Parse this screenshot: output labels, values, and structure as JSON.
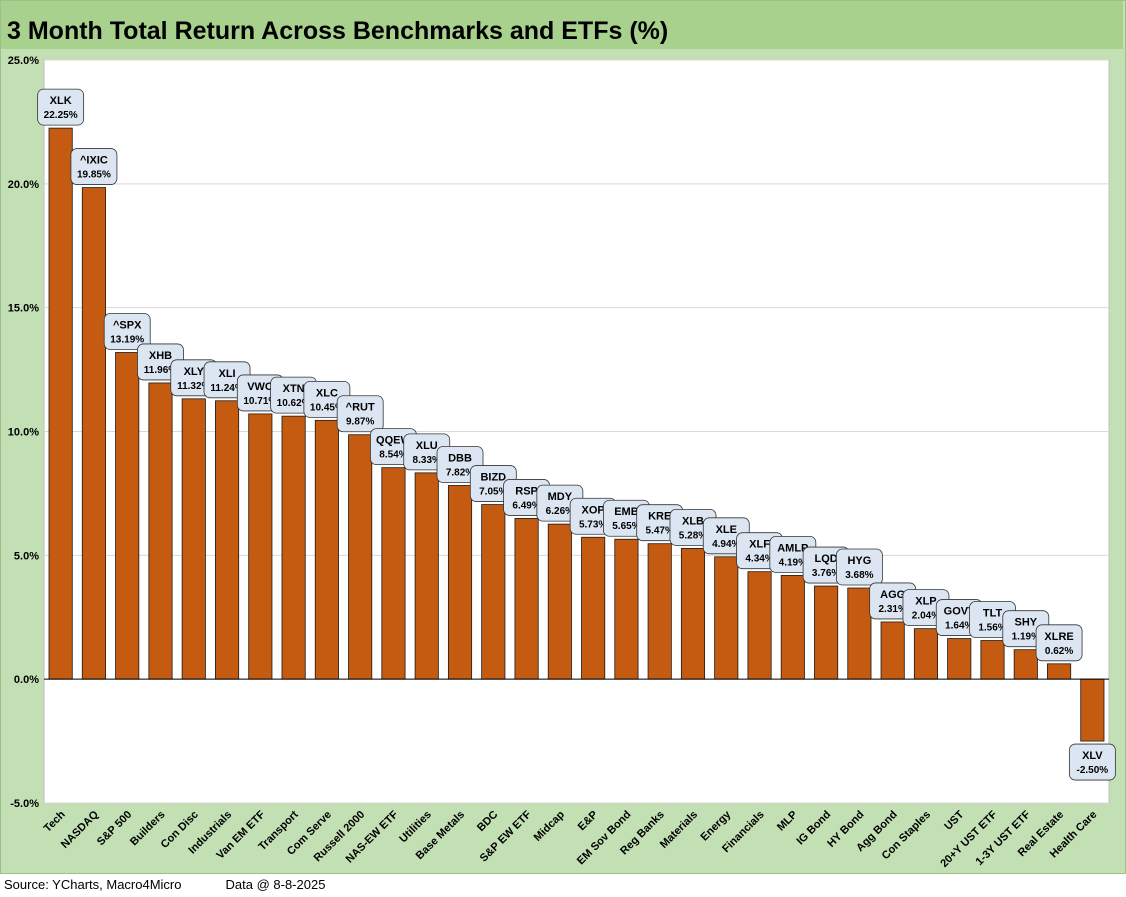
{
  "title": "3 Month Total Return Across Benchmarks and ETFs (%)",
  "footer": {
    "source": "Source: YCharts, Macro4Micro",
    "date": "Data @ 8-8-2025"
  },
  "colors": {
    "bar": "#c55a11",
    "bar_stroke": "#1a1a1a",
    "label_fill": "#dce6f2",
    "frame_bg": "#c3e0b4",
    "title_band": "#a9d18e",
    "grid": "#d9d9d9"
  },
  "chart_data": {
    "type": "bar",
    "title": "3 Month Total Return Across Benchmarks and ETFs (%)",
    "xlabel": "",
    "ylabel": "",
    "ylim": [
      -5,
      25
    ],
    "yticks": [
      "-5.0%",
      "0.0%",
      "5.0%",
      "10.0%",
      "15.0%",
      "20.0%",
      "25.0%"
    ],
    "grid": true,
    "categories": [
      "Tech",
      "NASDAQ",
      "S&P 500",
      "Builders",
      "Con Disc",
      "Industrials",
      "Van EM ETF",
      "Transport",
      "Com Serve",
      "Russell 2000",
      "NAS-EW ETF",
      "Utilities",
      "Base Metals",
      "BDC",
      "S&P EW ETF",
      "Midcap",
      "E&P",
      "EM Sov Bond",
      "Reg Banks",
      "Materials",
      "Energy",
      "Financials",
      "MLP",
      "IG Bond",
      "HY Bond",
      "Agg Bond",
      "Con Staples",
      "UST",
      "20+Y UST ETF",
      "1-3Y UST ETF",
      "Real Estate",
      "Health Care"
    ],
    "tickers": [
      "XLK",
      "^IXIC",
      "^SPX",
      "XHB",
      "XLY",
      "XLI",
      "VWO",
      "XTN",
      "XLC",
      "^RUT",
      "QQEW",
      "XLU",
      "DBB",
      "BIZD",
      "RSP",
      "MDY",
      "XOP",
      "EMB",
      "KRE",
      "XLB",
      "XLE",
      "XLF",
      "AMLP",
      "LQD",
      "HYG",
      "AGG",
      "XLP",
      "GOVT",
      "TLT",
      "SHY",
      "XLRE",
      "XLV"
    ],
    "values": [
      22.25,
      19.85,
      13.19,
      11.96,
      11.32,
      11.24,
      10.71,
      10.62,
      10.45,
      9.87,
      8.54,
      8.33,
      7.82,
      7.05,
      6.49,
      6.26,
      5.73,
      5.65,
      5.47,
      5.28,
      4.94,
      4.34,
      4.19,
      3.76,
      3.68,
      2.31,
      2.04,
      1.64,
      1.56,
      1.19,
      0.62,
      -2.5
    ],
    "value_labels": [
      "22.25%",
      "19.85%",
      "13.19%",
      "11.96%",
      "11.32%",
      "11.24%",
      "10.71%",
      "10.62%",
      "10.45%",
      "9.87%",
      "8.54%",
      "8.33%",
      "7.82%",
      "7.05%",
      "6.49%",
      "6.26%",
      "5.73%",
      "5.65%",
      "5.47%",
      "5.28%",
      "4.94%",
      "4.34%",
      "4.19%",
      "3.76%",
      "3.68%",
      "2.31%",
      "2.04%",
      "1.64%",
      "1.56%",
      "1.19%",
      "0.62%",
      "-2.50%"
    ]
  }
}
